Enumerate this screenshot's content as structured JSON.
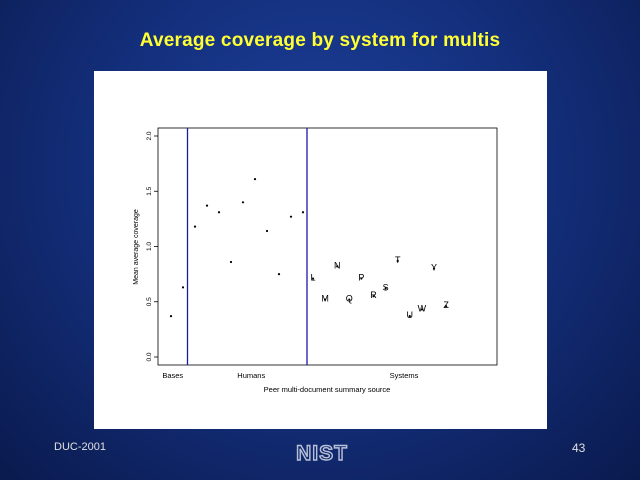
{
  "slide": {
    "title": "Average coverage by system for multis",
    "footer_left": "DUC-2001",
    "page_number": "43",
    "logo_text": "NIST"
  },
  "chart_data": {
    "type": "scatter",
    "title": "",
    "xlabel": "Peer multi-document summary source",
    "ylabel": "Mean average coverage",
    "ylim": [
      0,
      2.0
    ],
    "yticks": [
      0.0,
      0.5,
      1.0,
      1.5,
      2.0
    ],
    "group_labels": [
      "Bases",
      "Humans",
      "Systems"
    ],
    "baselines": [
      0.37,
      0.63
    ],
    "humans": [
      1.18,
      1.37,
      1.31,
      0.86,
      1.4,
      1.61,
      1.14,
      0.75,
      1.27,
      1.31
    ],
    "systems": [
      {
        "label": "L",
        "value": 0.71
      },
      {
        "label": "M",
        "value": 0.52
      },
      {
        "label": "N",
        "value": 0.82
      },
      {
        "label": "Q",
        "value": 0.52
      },
      {
        "label": "P",
        "value": 0.71
      },
      {
        "label": "R",
        "value": 0.55
      },
      {
        "label": "S",
        "value": 0.62
      },
      {
        "label": "T",
        "value": 0.87
      },
      {
        "label": "U",
        "value": 0.37
      },
      {
        "label": "W",
        "value": 0.43
      },
      {
        "label": "Y",
        "value": 0.8
      },
      {
        "label": "Z",
        "value": 0.46
      }
    ],
    "colors": {
      "dividers": "#1a1aa8",
      "marks": "#000000"
    }
  }
}
